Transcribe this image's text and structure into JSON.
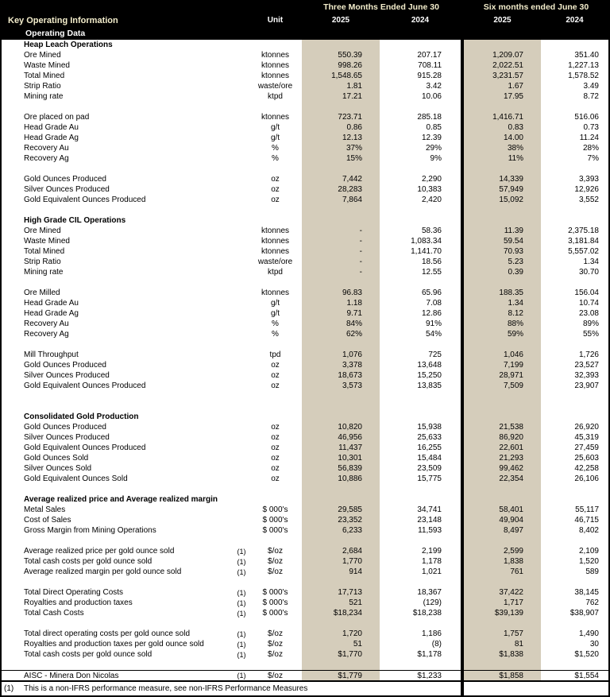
{
  "header": {
    "title": "Key Operating Information",
    "subtitle": "Operating Data",
    "unit_label": "Unit",
    "period_groups": [
      {
        "label": "Three Months Ended June 30",
        "years": [
          "2025",
          "2024"
        ]
      },
      {
        "label": "Six months ended June 30",
        "years": [
          "2025",
          "2024"
        ]
      }
    ]
  },
  "colors": {
    "highlight_band": "#d5cdbb",
    "header_bg": "#000000",
    "header_accent_text": "#f3edcb",
    "header_text": "#ffffff"
  },
  "rows": [
    {
      "t": "section",
      "label": "Heap Leach Operations",
      "note": "",
      "unit": "",
      "v": [
        "",
        "",
        "",
        ""
      ]
    },
    {
      "t": "data",
      "label": "Ore Mined",
      "note": "",
      "unit": "ktonnes",
      "v": [
        "550.39",
        "207.17",
        "1,209.07",
        "351.40"
      ]
    },
    {
      "t": "data",
      "label": "Waste Mined",
      "note": "",
      "unit": "ktonnes",
      "v": [
        "998.26",
        "708.11",
        "2,022.51",
        "1,227.13"
      ]
    },
    {
      "t": "data",
      "label": "Total Mined",
      "note": "",
      "unit": "ktonnes",
      "v": [
        "1,548.65",
        "915.28",
        "3,231.57",
        "1,578.52"
      ]
    },
    {
      "t": "data",
      "label": "Strip Ratio",
      "note": "",
      "unit": "waste/ore",
      "v": [
        "1.81",
        "3.42",
        "1.67",
        "3.49"
      ]
    },
    {
      "t": "data",
      "label": "Mining rate",
      "note": "",
      "unit": "ktpd",
      "v": [
        "17.21",
        "10.06",
        "17.95",
        "8.72"
      ]
    },
    {
      "t": "blank"
    },
    {
      "t": "data",
      "label": "Ore placed on pad",
      "note": "",
      "unit": "ktonnes",
      "v": [
        "723.71",
        "285.18",
        "1,416.71",
        "516.06"
      ]
    },
    {
      "t": "data",
      "label": "Head Grade Au",
      "note": "",
      "unit": "g/t",
      "v": [
        "0.86",
        "0.85",
        "0.83",
        "0.73"
      ]
    },
    {
      "t": "data",
      "label": "Head Grade Ag",
      "note": "",
      "unit": "g/t",
      "v": [
        "12.13",
        "12.39",
        "14.00",
        "11.24"
      ]
    },
    {
      "t": "data",
      "label": "Recovery Au",
      "note": "",
      "unit": "%",
      "v": [
        "37%",
        "29%",
        "38%",
        "28%"
      ]
    },
    {
      "t": "data",
      "label": "Recovery Ag",
      "note": "",
      "unit": "%",
      "v": [
        "15%",
        "9%",
        "11%",
        "7%"
      ]
    },
    {
      "t": "blank"
    },
    {
      "t": "data",
      "label": "Gold Ounces Produced",
      "note": "",
      "unit": "oz",
      "v": [
        "7,442",
        "2,290",
        "14,339",
        "3,393"
      ]
    },
    {
      "t": "data",
      "label": "Silver Ounces Produced",
      "note": "",
      "unit": "oz",
      "v": [
        "28,283",
        "10,383",
        "57,949",
        "12,926"
      ]
    },
    {
      "t": "data",
      "label": "Gold Equivalent Ounces Produced",
      "note": "",
      "unit": "oz",
      "v": [
        "7,864",
        "2,420",
        "15,092",
        "3,552"
      ]
    },
    {
      "t": "blank"
    },
    {
      "t": "section",
      "label": "High Grade CIL Operations",
      "note": "",
      "unit": "",
      "v": [
        "",
        "",
        "",
        ""
      ]
    },
    {
      "t": "data",
      "label": "Ore Mined",
      "note": "",
      "unit": "ktonnes",
      "v": [
        "-",
        "58.36",
        "11.39",
        "2,375.18"
      ]
    },
    {
      "t": "data",
      "label": "Waste Mined",
      "note": "",
      "unit": "ktonnes",
      "v": [
        "-",
        "1,083.34",
        "59.54",
        "3,181.84"
      ]
    },
    {
      "t": "data",
      "label": "Total Mined",
      "note": "",
      "unit": "ktonnes",
      "v": [
        "-",
        "1,141.70",
        "70.93",
        "5,557.02"
      ]
    },
    {
      "t": "data",
      "label": "Strip Ratio",
      "note": "",
      "unit": "waste/ore",
      "v": [
        "-",
        "18.56",
        "5.23",
        "1.34"
      ]
    },
    {
      "t": "data",
      "label": "Mining rate",
      "note": "",
      "unit": "ktpd",
      "v": [
        "-",
        "12.55",
        "0.39",
        "30.70"
      ]
    },
    {
      "t": "blank"
    },
    {
      "t": "data",
      "label": "Ore Milled",
      "note": "",
      "unit": "ktonnes",
      "v": [
        "96.83",
        "65.96",
        "188.35",
        "156.04"
      ]
    },
    {
      "t": "data",
      "label": "Head Grade Au",
      "note": "",
      "unit": "g/t",
      "v": [
        "1.18",
        "7.08",
        "1.34",
        "10.74"
      ]
    },
    {
      "t": "data",
      "label": "Head Grade Ag",
      "note": "",
      "unit": "g/t",
      "v": [
        "9.71",
        "12.86",
        "8.12",
        "23.08"
      ]
    },
    {
      "t": "data",
      "label": "Recovery Au",
      "note": "",
      "unit": "%",
      "v": [
        "84%",
        "91%",
        "88%",
        "89%"
      ]
    },
    {
      "t": "data",
      "label": "Recovery Ag",
      "note": "",
      "unit": "%",
      "v": [
        "62%",
        "54%",
        "59%",
        "55%"
      ]
    },
    {
      "t": "blank"
    },
    {
      "t": "data",
      "label": "Mill Throughput",
      "note": "",
      "unit": "tpd",
      "v": [
        "1,076",
        "725",
        "1,046",
        "1,726"
      ]
    },
    {
      "t": "data",
      "label": "Gold Ounces Produced",
      "note": "",
      "unit": "oz",
      "v": [
        "3,378",
        "13,648",
        "7,199",
        "23,527"
      ]
    },
    {
      "t": "data",
      "label": "Silver Ounces Produced",
      "note": "",
      "unit": "oz",
      "v": [
        "18,673",
        "15,250",
        "28,971",
        "32,393"
      ]
    },
    {
      "t": "data",
      "label": "Gold Equivalent Ounces Produced",
      "note": "",
      "unit": "oz",
      "v": [
        "3,573",
        "13,835",
        "7,509",
        "23,907"
      ]
    },
    {
      "t": "blank"
    },
    {
      "t": "blank"
    },
    {
      "t": "section",
      "label": "Consolidated Gold Production",
      "note": "",
      "unit": "",
      "v": [
        "",
        "",
        "",
        ""
      ]
    },
    {
      "t": "data",
      "label": "Gold Ounces Produced",
      "note": "",
      "unit": "oz",
      "v": [
        "10,820",
        "15,938",
        "21,538",
        "26,920"
      ]
    },
    {
      "t": "data",
      "label": "Silver Ounces Produced",
      "note": "",
      "unit": "oz",
      "v": [
        "46,956",
        "25,633",
        "86,920",
        "45,319"
      ]
    },
    {
      "t": "data",
      "label": "Gold Equivalent Ounces Produced",
      "note": "",
      "unit": "oz",
      "v": [
        "11,437",
        "16,255",
        "22,601",
        "27,459"
      ]
    },
    {
      "t": "data",
      "label": "Gold Ounces Sold",
      "note": "",
      "unit": "oz",
      "v": [
        "10,301",
        "15,484",
        "21,293",
        "25,603"
      ]
    },
    {
      "t": "data",
      "label": "Silver Ounces Sold",
      "note": "",
      "unit": "oz",
      "v": [
        "56,839",
        "23,509",
        "99,462",
        "42,258"
      ]
    },
    {
      "t": "data",
      "label": "Gold Equivalent Ounces Sold",
      "note": "",
      "unit": "oz",
      "v": [
        "10,886",
        "15,775",
        "22,354",
        "26,106"
      ]
    },
    {
      "t": "blank"
    },
    {
      "t": "section",
      "label": "Average realized price and Average realized margin",
      "note": "",
      "unit": "",
      "v": [
        "",
        "",
        "",
        ""
      ]
    },
    {
      "t": "data",
      "label": "Metal Sales",
      "note": "",
      "unit": "$ 000's",
      "v": [
        "29,585",
        "34,741",
        "58,401",
        "55,117"
      ]
    },
    {
      "t": "data",
      "label": "Cost of Sales",
      "note": "",
      "unit": "$ 000's",
      "v": [
        "23,352",
        "23,148",
        "49,904",
        "46,715"
      ]
    },
    {
      "t": "data",
      "label": "Gross Margin from Mining Operations",
      "note": "",
      "unit": "$ 000's",
      "v": [
        "6,233",
        "11,593",
        "8,497",
        "8,402"
      ]
    },
    {
      "t": "blank"
    },
    {
      "t": "data",
      "label": "Average realized price per gold ounce sold",
      "note": "(1)",
      "unit": "$/oz",
      "v": [
        "2,684",
        "2,199",
        "2,599",
        "2,109"
      ]
    },
    {
      "t": "data",
      "label": "Total cash costs per gold ounce sold",
      "note": "(1)",
      "unit": "$/oz",
      "v": [
        "1,770",
        "1,178",
        "1,838",
        "1,520"
      ]
    },
    {
      "t": "data",
      "label": "Average realized margin per gold ounce sold",
      "note": "(1)",
      "unit": "$/oz",
      "v": [
        "914",
        "1,021",
        "761",
        "589"
      ]
    },
    {
      "t": "blank"
    },
    {
      "t": "data",
      "label": "Total Direct Operating Costs",
      "note": "(1)",
      "unit": "$ 000's",
      "v": [
        "17,713",
        "18,367",
        "37,422",
        "38,145"
      ]
    },
    {
      "t": "data",
      "label": "Royalties and production taxes",
      "note": "(1)",
      "unit": "$ 000's",
      "v": [
        "521",
        "(129)",
        "1,717",
        "762"
      ]
    },
    {
      "t": "data",
      "label": "Total Cash Costs",
      "note": "(1)",
      "unit": "$ 000's",
      "v": [
        "$18,234",
        "$18,238",
        "$39,139",
        "$38,907"
      ]
    },
    {
      "t": "blank"
    },
    {
      "t": "data",
      "label": "Total direct operating costs per gold ounce sold",
      "note": "(1)",
      "unit": "$/oz",
      "v": [
        "1,720",
        "1,186",
        "1,757",
        "1,490"
      ]
    },
    {
      "t": "data",
      "label": "Royalties and production taxes per gold ounce sold",
      "note": "(1)",
      "unit": "$/oz",
      "v": [
        "51",
        "(8)",
        "81",
        "30"
      ]
    },
    {
      "t": "data",
      "label": "Total cash costs per gold ounce sold",
      "note": "(1)",
      "unit": "$/oz",
      "v": [
        "$1,770",
        "$1,178",
        "$1,838",
        "$1,520"
      ]
    },
    {
      "t": "blank"
    },
    {
      "t": "data",
      "topline": true,
      "label": "AISC - Minera Don Nicolas",
      "note": "(1)",
      "unit": "$/oz",
      "v": [
        "$1,779",
        "$1,233",
        "$1,858",
        "$1,554"
      ]
    }
  ],
  "footnote": {
    "marker": "(1)",
    "text": "This is a non-IFRS performance measure, see non-IFRS Performance Measures"
  }
}
